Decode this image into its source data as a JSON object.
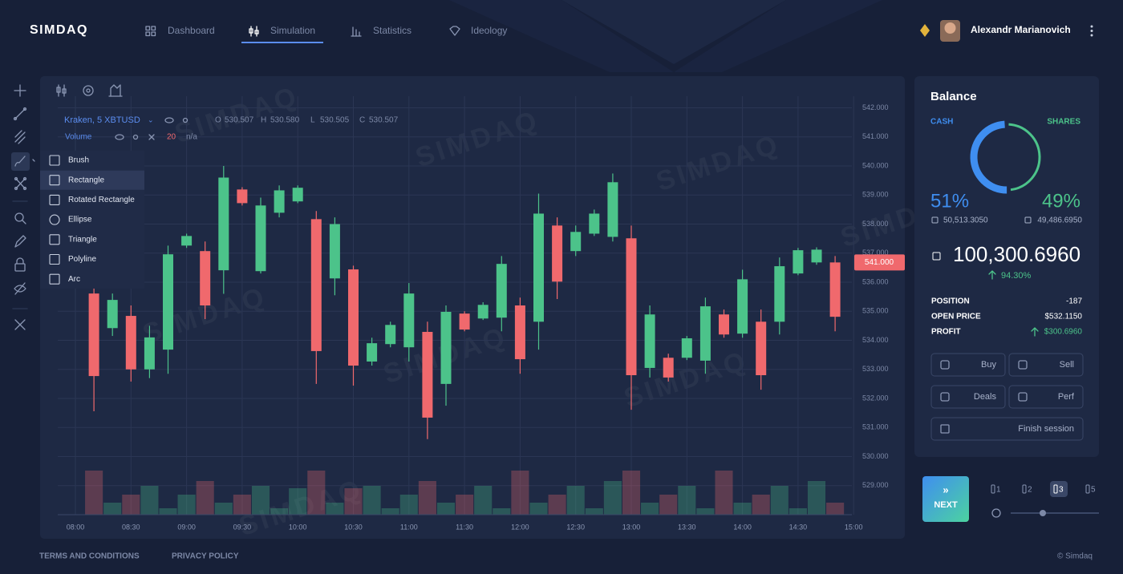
{
  "header": {
    "logo": "SIMDAQ",
    "nav": [
      {
        "label": "Dashboard",
        "active": false
      },
      {
        "label": "Simulation",
        "active": true
      },
      {
        "label": "Statistics",
        "active": false
      },
      {
        "label": "Ideology",
        "active": false
      }
    ],
    "user": "Alexandr Marianovich"
  },
  "tools_menu": {
    "items": [
      "Brush",
      "Rectangle",
      "Rotated Rectangle",
      "Ellipse",
      "Triangle",
      "Polyline",
      "Arc"
    ],
    "selected": "Rectangle"
  },
  "chart": {
    "type": "candlestick",
    "symbol": "Kraken, 5 XBTUSD",
    "ohlc_legend": [
      {
        "label": "O",
        "value": "530.507"
      },
      {
        "label": "H",
        "value": "530.580"
      },
      {
        "label": "L",
        "value": "530.505"
      },
      {
        "label": "C",
        "value": "530.507"
      }
    ],
    "volume_label": "Volume",
    "volume_length": "20",
    "volume_value": "n/a",
    "watermark": "SIMDAQ",
    "last_price_label": "541.000",
    "up_color": "#4cc38a",
    "down_color": "#f0696d",
    "grid": true,
    "ylim": [
      528,
      542.4
    ],
    "yticks": [
      {
        "value": 529,
        "label": "529.000"
      },
      {
        "value": 530,
        "label": "530.000"
      },
      {
        "value": 531,
        "label": "531.000"
      },
      {
        "value": 532,
        "label": "532.000"
      },
      {
        "value": 533,
        "label": "533.000"
      },
      {
        "value": 534,
        "label": "534.000"
      },
      {
        "value": 535,
        "label": "535.000"
      },
      {
        "value": 536,
        "label": "536.000"
      },
      {
        "value": 537,
        "label": "537.000"
      },
      {
        "value": 538,
        "label": "538.000"
      },
      {
        "value": 539,
        "label": "539.000"
      },
      {
        "value": 540,
        "label": "540.000"
      },
      {
        "value": 541,
        "label": "541.000"
      },
      {
        "value": 542,
        "label": "542.000"
      }
    ],
    "xtick_labels": [
      "08:00",
      "08:30",
      "09:00",
      "09:30",
      "10:00",
      "10:30",
      "11:00",
      "11:30",
      "12:00",
      "12:30",
      "13:00",
      "13:30",
      "14:00",
      "14:30",
      "15:00"
    ],
    "candles": [
      {
        "open": 535.61,
        "high": 536.02,
        "low": 531.56,
        "close": 532.77
      },
      {
        "open": 534.42,
        "high": 535.61,
        "low": 534.15,
        "close": 535.39
      },
      {
        "open": 534.84,
        "high": 535.2,
        "low": 532.58,
        "close": 533.0
      },
      {
        "open": 533.0,
        "high": 534.5,
        "low": 532.7,
        "close": 534.1
      },
      {
        "open": 533.68,
        "high": 537.26,
        "low": 532.85,
        "close": 536.96
      },
      {
        "open": 537.26,
        "high": 537.67,
        "low": 537.18,
        "close": 537.59
      },
      {
        "open": 537.07,
        "high": 537.4,
        "low": 534.73,
        "close": 535.2
      },
      {
        "open": 536.41,
        "high": 540.0,
        "low": 535.6,
        "close": 539.6
      },
      {
        "open": 539.19,
        "high": 539.27,
        "low": 538.64,
        "close": 538.72
      },
      {
        "open": 536.38,
        "high": 538.91,
        "low": 536.3,
        "close": 538.64
      },
      {
        "open": 538.39,
        "high": 539.33,
        "low": 538.23,
        "close": 539.16
      },
      {
        "open": 538.78,
        "high": 539.33,
        "low": 538.72,
        "close": 539.25
      },
      {
        "open": 538.17,
        "high": 538.45,
        "low": 532.5,
        "close": 533.63
      },
      {
        "open": 536.13,
        "high": 538.23,
        "low": 535.55,
        "close": 538.0
      },
      {
        "open": 536.44,
        "high": 536.57,
        "low": 532.44,
        "close": 533.13
      },
      {
        "open": 533.27,
        "high": 534.09,
        "low": 533.13,
        "close": 533.9
      },
      {
        "open": 533.87,
        "high": 534.64,
        "low": 533.76,
        "close": 534.53
      },
      {
        "open": 533.76,
        "high": 535.97,
        "low": 533.27,
        "close": 535.61
      },
      {
        "open": 534.29,
        "high": 534.64,
        "low": 530.6,
        "close": 531.34
      },
      {
        "open": 532.5,
        "high": 535.2,
        "low": 531.75,
        "close": 534.98
      },
      {
        "open": 534.92,
        "high": 535.0,
        "low": 534.31,
        "close": 534.37
      },
      {
        "open": 534.75,
        "high": 535.31,
        "low": 534.7,
        "close": 535.22
      },
      {
        "open": 534.78,
        "high": 536.9,
        "low": 534.31,
        "close": 536.63
      },
      {
        "open": 535.2,
        "high": 535.47,
        "low": 532.85,
        "close": 533.35
      },
      {
        "open": 534.64,
        "high": 539.05,
        "low": 533.68,
        "close": 538.36
      },
      {
        "open": 537.95,
        "high": 538.23,
        "low": 535.42,
        "close": 536.02
      },
      {
        "open": 537.07,
        "high": 537.95,
        "low": 536.9,
        "close": 537.73
      },
      {
        "open": 537.67,
        "high": 538.5,
        "low": 537.59,
        "close": 538.36
      },
      {
        "open": 537.56,
        "high": 539.74,
        "low": 537.4,
        "close": 539.44
      },
      {
        "open": 537.51,
        "high": 537.95,
        "low": 531.61,
        "close": 532.8
      },
      {
        "open": 533.05,
        "high": 535.2,
        "low": 532.72,
        "close": 534.89
      },
      {
        "open": 533.4,
        "high": 533.54,
        "low": 532.58,
        "close": 532.72
      },
      {
        "open": 533.4,
        "high": 534.15,
        "low": 533.32,
        "close": 534.07
      },
      {
        "open": 533.3,
        "high": 535.47,
        "low": 532.85,
        "close": 535.17
      },
      {
        "open": 534.89,
        "high": 535.06,
        "low": 534.09,
        "close": 534.2
      },
      {
        "open": 534.23,
        "high": 536.43,
        "low": 534.09,
        "close": 536.1
      },
      {
        "open": 534.64,
        "high": 535.06,
        "low": 532.3,
        "close": 532.8
      },
      {
        "open": 534.64,
        "high": 536.85,
        "low": 534.2,
        "close": 536.55
      },
      {
        "open": 536.3,
        "high": 537.18,
        "low": 536.24,
        "close": 537.1
      },
      {
        "open": 536.68,
        "high": 537.2,
        "low": 536.6,
        "close": 537.12
      },
      {
        "open": 536.68,
        "high": 536.9,
        "low": 534.31,
        "close": 534.81
      }
    ],
    "volume_ylim": [
      0,
      100
    ],
    "volume": [
      55,
      15,
      25,
      36,
      8,
      25,
      42,
      15,
      25,
      36,
      8,
      33,
      55,
      15,
      33,
      36,
      8,
      25,
      42,
      15,
      25,
      36,
      8,
      55,
      15,
      25,
      36,
      8,
      42,
      55,
      15,
      25,
      36,
      8,
      55,
      15,
      25,
      36,
      8,
      42,
      15
    ]
  },
  "balance": {
    "title": "Balance",
    "cash": {
      "label": "CASH",
      "percent": 51,
      "percent_label": "51%",
      "amount": "50,513.3050",
      "color": "#3f8ef0"
    },
    "shares": {
      "label": "SHARES",
      "percent": 49,
      "percent_label": "49%",
      "amount": "49,486.6950",
      "color": "#4cc38a"
    },
    "total": "100,300.6960",
    "change": "94.30%",
    "rows": [
      {
        "label": "POSITION",
        "value": "-187"
      },
      {
        "label": "OPEN PRICE",
        "value": "$532.1150"
      },
      {
        "label": "PROFIT",
        "value": "$300.6960"
      }
    ],
    "buttons": [
      "Buy",
      "Sell",
      "Deals",
      "Perf"
    ],
    "finish": "Finish session"
  },
  "controls": {
    "next": "NEXT",
    "speeds": [
      "1",
      "2",
      "3",
      "5"
    ],
    "active_speed": "3"
  },
  "footer": {
    "terms": "TERMS AND CONDITIONS",
    "privacy": "PRIVACY POLICY",
    "copyright": "© Simdaq"
  }
}
